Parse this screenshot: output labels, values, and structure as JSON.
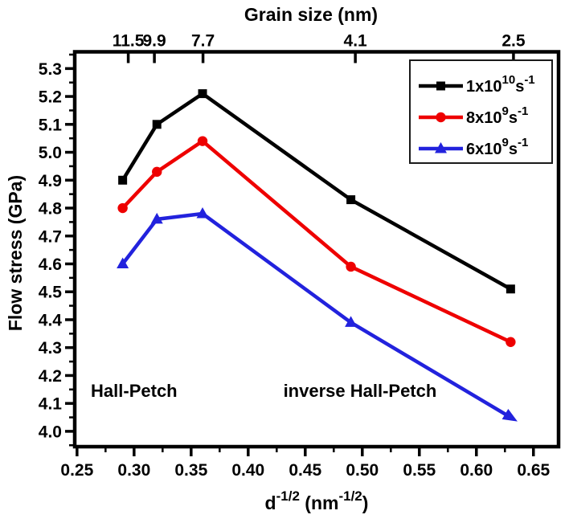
{
  "chart_data": {
    "type": "line",
    "ylabel": "Flow stress (GPa)",
    "xlabel_parts": [
      {
        "t": "d"
      },
      {
        "t": "-1/2",
        "sup": true
      },
      {
        "t": " (nm"
      },
      {
        "t": "-1/2",
        "sup": true
      },
      {
        "t": ")"
      }
    ],
    "x_axis": {
      "min": 0.248,
      "max": 0.672,
      "ticks": [
        {
          "v": 0.25,
          "label": "0.25"
        },
        {
          "v": 0.3,
          "label": "0.30"
        },
        {
          "v": 0.35,
          "label": "0.35"
        },
        {
          "v": 0.4,
          "label": "0.40"
        },
        {
          "v": 0.45,
          "label": "0.45"
        },
        {
          "v": 0.5,
          "label": "0.50"
        },
        {
          "v": 0.55,
          "label": "0.55"
        },
        {
          "v": 0.6,
          "label": "0.60"
        },
        {
          "v": 0.65,
          "label": "0.65"
        }
      ],
      "minor": [
        0.275,
        0.325,
        0.375,
        0.425,
        0.475,
        0.525,
        0.575,
        0.625
      ]
    },
    "y_axis": {
      "min": 3.945,
      "max": 5.36,
      "ticks": [
        {
          "v": 4.0,
          "label": "4.0"
        },
        {
          "v": 4.1,
          "label": "4.1"
        },
        {
          "v": 4.2,
          "label": "4.2"
        },
        {
          "v": 4.3,
          "label": "4.3"
        },
        {
          "v": 4.4,
          "label": "4.4"
        },
        {
          "v": 4.5,
          "label": "4.5"
        },
        {
          "v": 4.6,
          "label": "4.6"
        },
        {
          "v": 4.7,
          "label": "4.7"
        },
        {
          "v": 4.8,
          "label": "4.8"
        },
        {
          "v": 4.9,
          "label": "4.9"
        },
        {
          "v": 5.0,
          "label": "5.0"
        },
        {
          "v": 5.1,
          "label": "5.1"
        },
        {
          "v": 5.2,
          "label": "5.2"
        },
        {
          "v": 5.3,
          "label": "5.3"
        }
      ],
      "minor": [
        3.95,
        4.05,
        4.15,
        4.25,
        4.35,
        4.45,
        4.55,
        4.65,
        4.75,
        4.85,
        4.95,
        5.05,
        5.15,
        5.25,
        5.35
      ]
    },
    "top_axis": {
      "title": "Grain size (nm)",
      "ticks": [
        {
          "v": 0.2949,
          "label": "11.5"
        },
        {
          "v": 0.3178,
          "label": "9.9"
        },
        {
          "v": 0.3604,
          "label": "7.7"
        },
        {
          "v": 0.4939,
          "label": "4.1"
        },
        {
          "v": 0.6325,
          "label": "2.5"
        }
      ]
    },
    "x": [
      0.29,
      0.32,
      0.36,
      0.49,
      0.63
    ],
    "series": [
      {
        "name_parts": [
          {
            "t": "1x10"
          },
          {
            "t": "10",
            "sup": true
          },
          {
            "t": "s"
          },
          {
            "t": "-1",
            "sup": true
          }
        ],
        "color": "#000000",
        "marker": "square",
        "y": [
          4.9,
          5.1,
          5.21,
          4.83,
          4.51
        ]
      },
      {
        "name_parts": [
          {
            "t": "8x10"
          },
          {
            "t": "9",
            "sup": true
          },
          {
            "t": "s"
          },
          {
            "t": "-1",
            "sup": true
          }
        ],
        "color": "#ee0000",
        "marker": "circle",
        "y": [
          4.8,
          4.93,
          5.04,
          4.59,
          4.32
        ]
      },
      {
        "name_parts": [
          {
            "t": "6x10"
          },
          {
            "t": "9",
            "sup": true
          },
          {
            "t": "s"
          },
          {
            "t": "-1",
            "sup": true
          }
        ],
        "color": "#2222dd",
        "marker": "triangle",
        "arrow_end": true,
        "y": [
          4.6,
          4.76,
          4.78,
          4.39,
          4.05
        ]
      }
    ],
    "annotations": [
      {
        "text": "Hall-Petch",
        "x": 0.3,
        "y": 4.145
      },
      {
        "text": "inverse Hall-Petch",
        "x": 0.498,
        "y": 4.145
      }
    ],
    "legend": {
      "position": "top-right"
    }
  }
}
